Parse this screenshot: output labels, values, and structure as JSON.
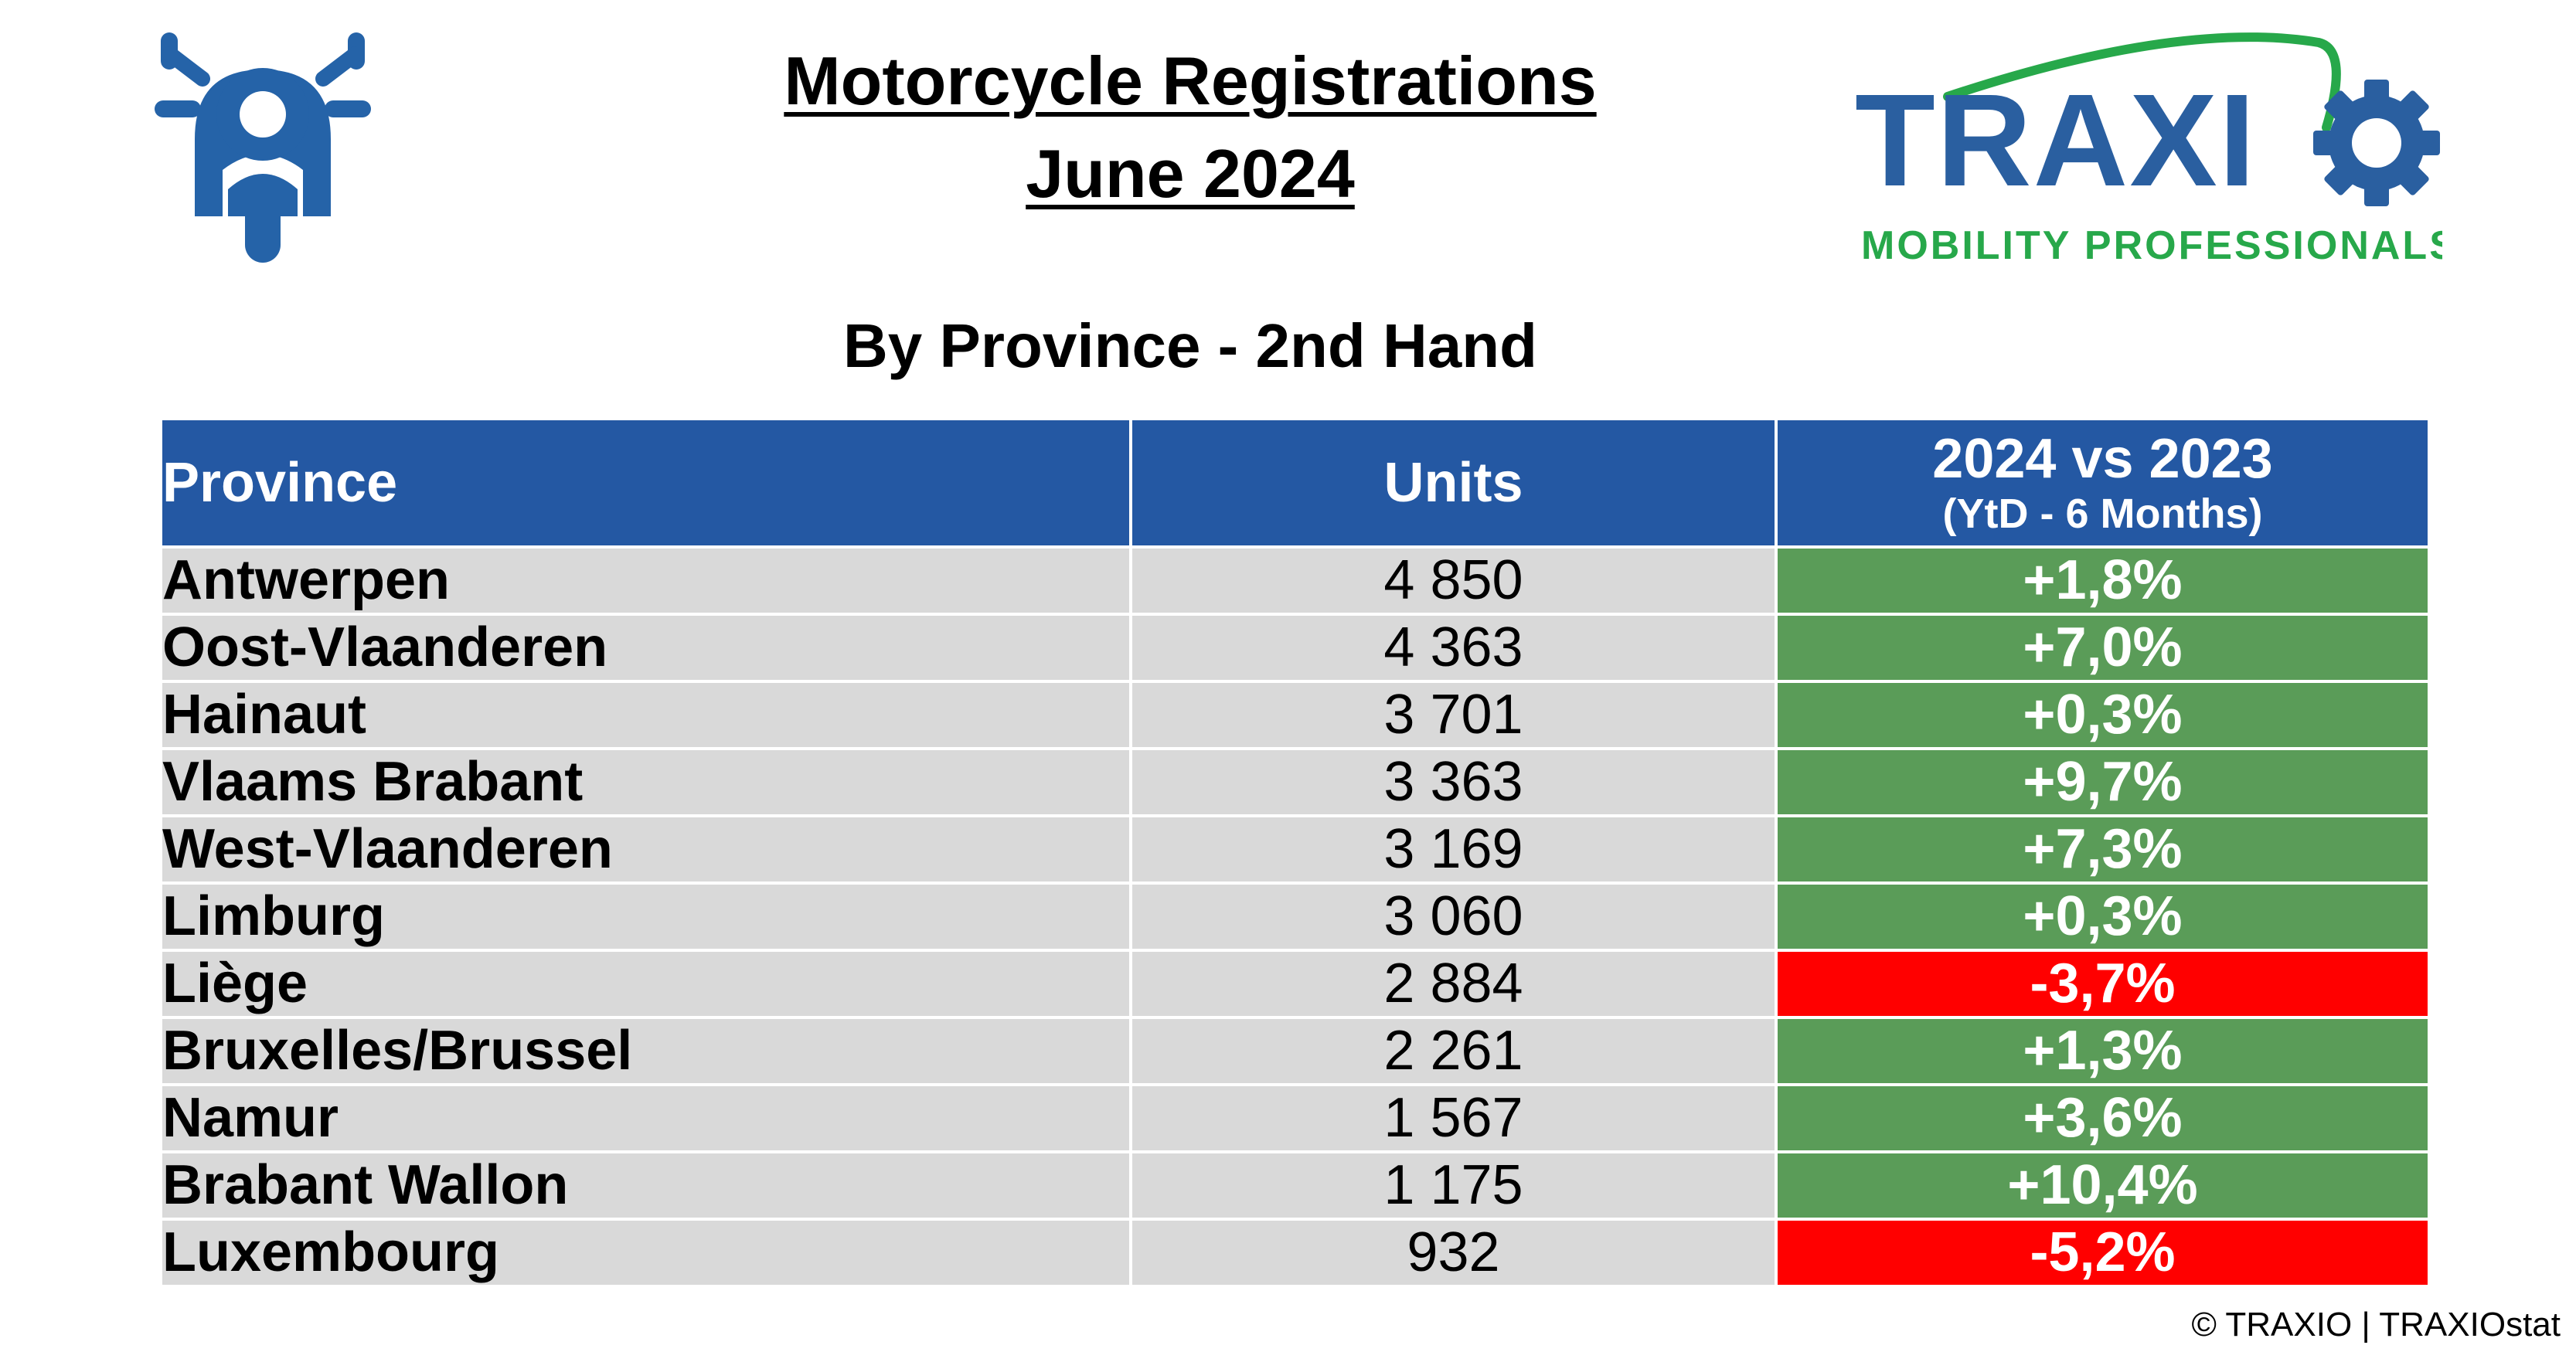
{
  "header": {
    "title_line1": "Motorcycle Registrations",
    "title_line2": "June 2024",
    "subtitle": "By Province - 2nd Hand"
  },
  "logo": {
    "brand": "TRAXIO",
    "tagline": "MOBILITY PROFESSIONALS",
    "brand_color": "#2a5fa0",
    "accent_color": "#27a84a"
  },
  "icons": {
    "motorcycle": "motorcycle-icon"
  },
  "table": {
    "headers": {
      "province": "Province",
      "units": "Units",
      "change_main": "2024 vs 2023",
      "change_sub": "(YtD - 6 Months)"
    },
    "colors": {
      "header": "#2458a3",
      "cell": "#d9d9d9",
      "positive": "#5a9c58",
      "negative": "#ff0000"
    },
    "rows": [
      {
        "province": "Antwerpen",
        "units": "4 850",
        "change": "+1,8%",
        "status": "positive"
      },
      {
        "province": "Oost-Vlaanderen",
        "units": "4 363",
        "change": "+7,0%",
        "status": "positive"
      },
      {
        "province": "Hainaut",
        "units": "3 701",
        "change": "+0,3%",
        "status": "positive"
      },
      {
        "province": "Vlaams Brabant",
        "units": "3 363",
        "change": "+9,7%",
        "status": "positive"
      },
      {
        "province": "West-Vlaanderen",
        "units": "3 169",
        "change": "+7,3%",
        "status": "positive"
      },
      {
        "province": "Limburg",
        "units": "3 060",
        "change": "+0,3%",
        "status": "positive"
      },
      {
        "province": "Liège",
        "units": "2 884",
        "change": "-3,7%",
        "status": "negative"
      },
      {
        "province": "Bruxelles/Brussel",
        "units": "2 261",
        "change": "+1,3%",
        "status": "positive"
      },
      {
        "province": "Namur",
        "units": "1 567",
        "change": "+3,6%",
        "status": "positive"
      },
      {
        "province": "Brabant Wallon",
        "units": "1 175",
        "change": "+10,4%",
        "status": "positive"
      },
      {
        "province": "Luxembourg",
        "units": "932",
        "change": "-5,2%",
        "status": "negative"
      }
    ]
  },
  "footer": {
    "copyright": "© TRAXIO | TRAXIOstat"
  }
}
